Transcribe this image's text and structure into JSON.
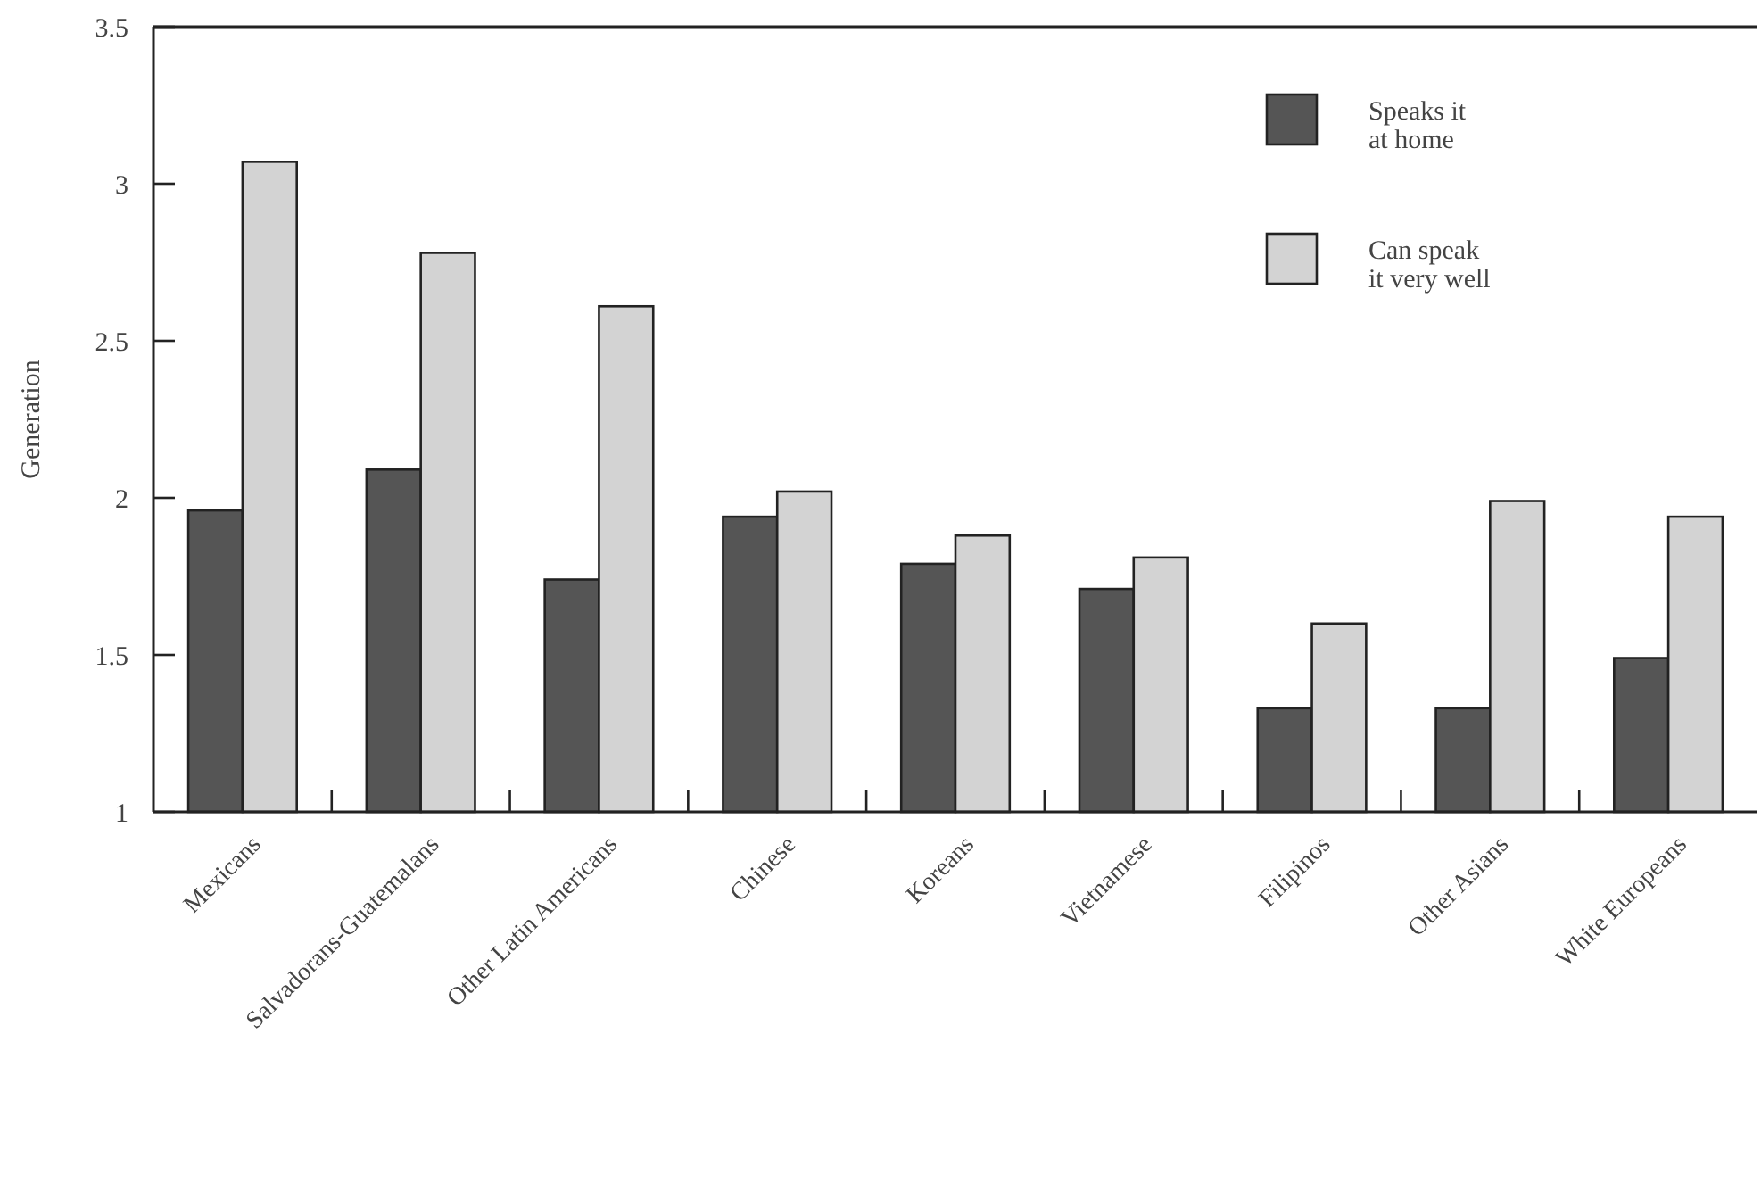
{
  "chart_data": {
    "type": "bar",
    "ylabel": "Generation",
    "categories": [
      "Mexicans",
      "Salvadorans-Guatemalans",
      "Other Latin Americans",
      "Chinese",
      "Koreans",
      "Vietnamese",
      "Filipinos",
      "Other Asians",
      "White Europeans"
    ],
    "series": [
      {
        "name": "Speaks it at home",
        "color": "#555555",
        "values": [
          1.96,
          2.09,
          1.74,
          1.94,
          1.79,
          1.71,
          1.33,
          1.33,
          1.49
        ]
      },
      {
        "name": "Can speak it very well",
        "color": "#d3d3d3",
        "values": [
          3.07,
          2.78,
          2.61,
          2.02,
          1.88,
          1.81,
          1.6,
          1.99,
          1.94
        ]
      }
    ],
    "ylim": [
      1,
      3.5
    ],
    "yticks": [
      1,
      1.5,
      2,
      2.5,
      3,
      3.5
    ],
    "grid": false,
    "legend": "top right"
  }
}
